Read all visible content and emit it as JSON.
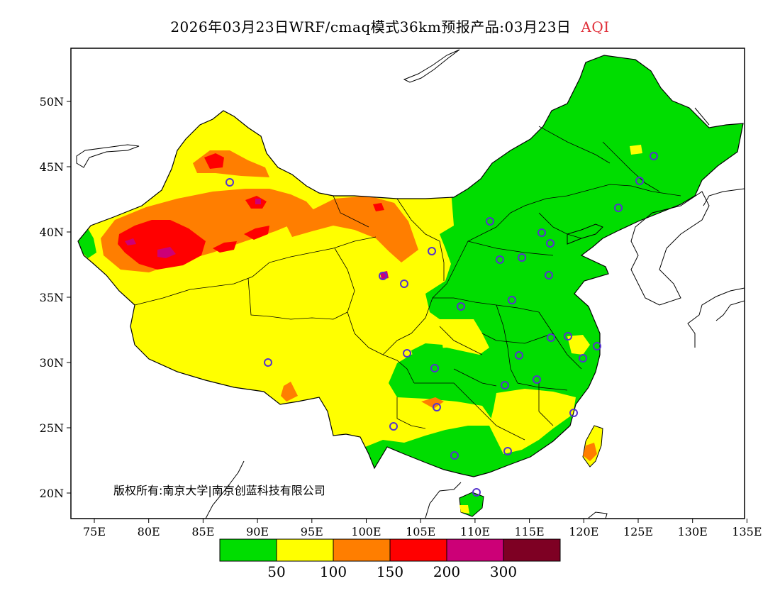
{
  "title": {
    "main": "2026年03月23日WRF/cmaq模式36km预报产品:03月23日",
    "variable": "AQI"
  },
  "axes": {
    "x_labels": [
      "75E",
      "80E",
      "85E",
      "90E",
      "95E",
      "100E",
      "105E",
      "110E",
      "115E",
      "120E",
      "125E",
      "130E",
      "135E"
    ],
    "y_labels": [
      "50N",
      "45N",
      "40N",
      "35N",
      "30N",
      "25N",
      "20N"
    ]
  },
  "copyright": "版权所有:南京大学|南京创蓝科技有限公司",
  "legend": {
    "colors": [
      "#00dd00",
      "#ffff00",
      "#ff7e00",
      "#ff0000",
      "#cc0077",
      "#7e0023"
    ],
    "breaks": [
      "50",
      "100",
      "150",
      "200",
      "300"
    ]
  },
  "palette": {
    "coast": "#000000",
    "frame": "#000000",
    "station": "#5533cc"
  }
}
